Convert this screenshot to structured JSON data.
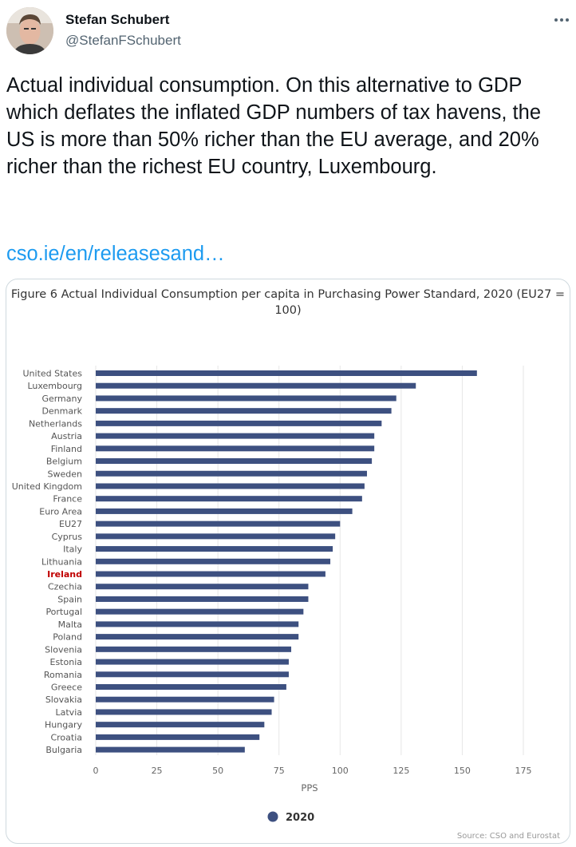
{
  "tweet": {
    "author_name": "Stefan Schubert",
    "author_handle": "@StefanFSchubert",
    "text": "Actual individual consumption. On this alternative to GDP which deflates the inflated GDP numbers of tax havens, the US is more than 50% richer than the EU average, and 20% richer than the richest EU country, Luxembourg.",
    "link_text": "cso.ie/en/releasesand…",
    "more_icon": "ellipsis-icon"
  },
  "chart_data": {
    "type": "bar",
    "orientation": "horizontal",
    "title": "Figure 6 Actual Individual Consumption per capita in Purchasing Power Standard, 2020 (EU27 = 100)",
    "xlabel": "PPS",
    "ylabel": "",
    "xlim": [
      0,
      175
    ],
    "xticks": [
      "0",
      "25",
      "50",
      "75",
      "100",
      "125",
      "150",
      "175"
    ],
    "grid": "vertical",
    "legend_placement": "bottom-center",
    "credit": "Source: CSO and Eurostat",
    "highlight_category": "Ireland",
    "highlight_color": "#c00000",
    "bar_color": "#3d5080",
    "categories": [
      "United States",
      "Luxembourg",
      "Germany",
      "Denmark",
      "Netherlands",
      "Austria",
      "Finland",
      "Belgium",
      "Sweden",
      "United Kingdom",
      "France",
      "Euro Area",
      "EU27",
      "Cyprus",
      "Italy",
      "Lithuania",
      "Ireland",
      "Czechia",
      "Spain",
      "Portugal",
      "Malta",
      "Poland",
      "Slovenia",
      "Estonia",
      "Romania",
      "Greece",
      "Slovakia",
      "Latvia",
      "Hungary",
      "Croatia",
      "Bulgaria"
    ],
    "series": [
      {
        "name": "2020",
        "values": [
          156,
          131,
          123,
          121,
          117,
          114,
          114,
          113,
          111,
          110,
          109,
          105,
          100,
          98,
          97,
          96,
          94,
          87,
          87,
          85,
          83,
          83,
          80,
          79,
          79,
          78,
          73,
          72,
          69,
          67,
          61
        ]
      }
    ]
  }
}
